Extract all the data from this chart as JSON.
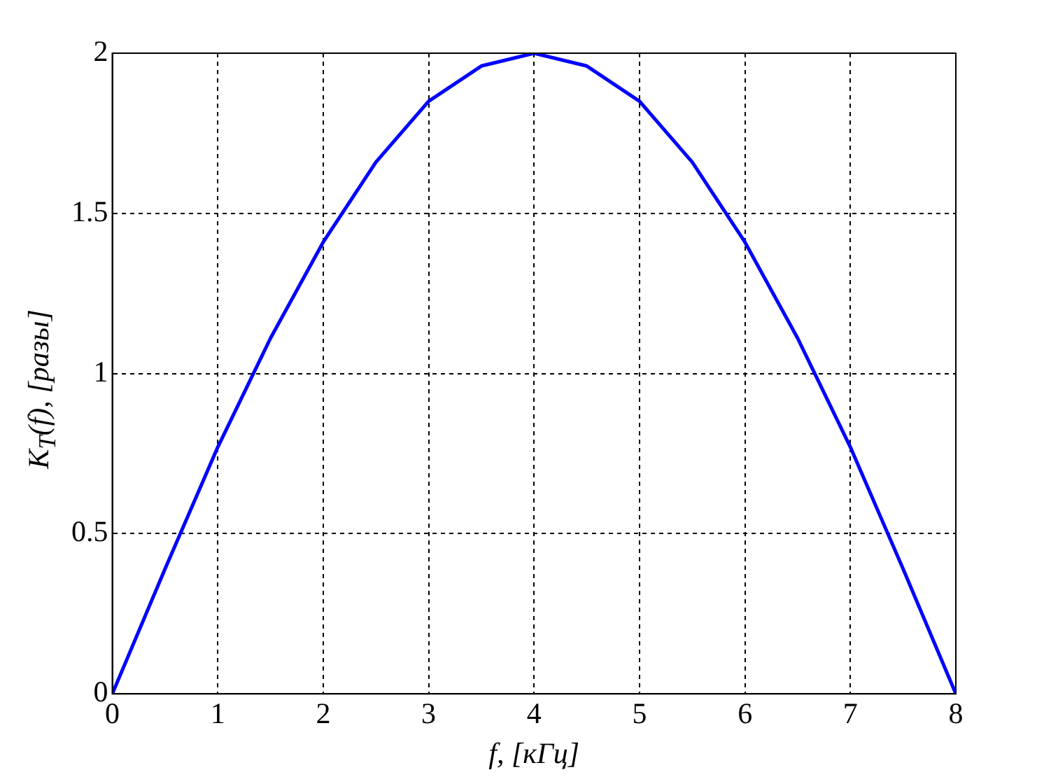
{
  "chart_data": {
    "type": "line",
    "xlabel": "f, [кГц]",
    "ylabel": "K$_{T}$(f), [разы]",
    "x": [
      0,
      0.5,
      1,
      1.5,
      2,
      2.5,
      3,
      3.5,
      4,
      4.5,
      5,
      5.5,
      6,
      6.5,
      7,
      7.5,
      8
    ],
    "series": [
      {
        "color": "#0000ff",
        "values": [
          0,
          0.39,
          0.77,
          1.11,
          1.41,
          1.66,
          1.85,
          1.96,
          2,
          1.96,
          1.85,
          1.66,
          1.41,
          1.11,
          0.77,
          0.39,
          0
        ]
      }
    ],
    "xlim": [
      0,
      8
    ],
    "xticks": [
      0,
      1,
      2,
      3,
      4,
      5,
      6,
      7,
      8
    ],
    "ylim": [
      0,
      2
    ],
    "yticks": [
      0,
      0.5,
      1,
      1.5,
      2
    ],
    "grid": true,
    "line_style": "solid",
    "marker": "none"
  }
}
